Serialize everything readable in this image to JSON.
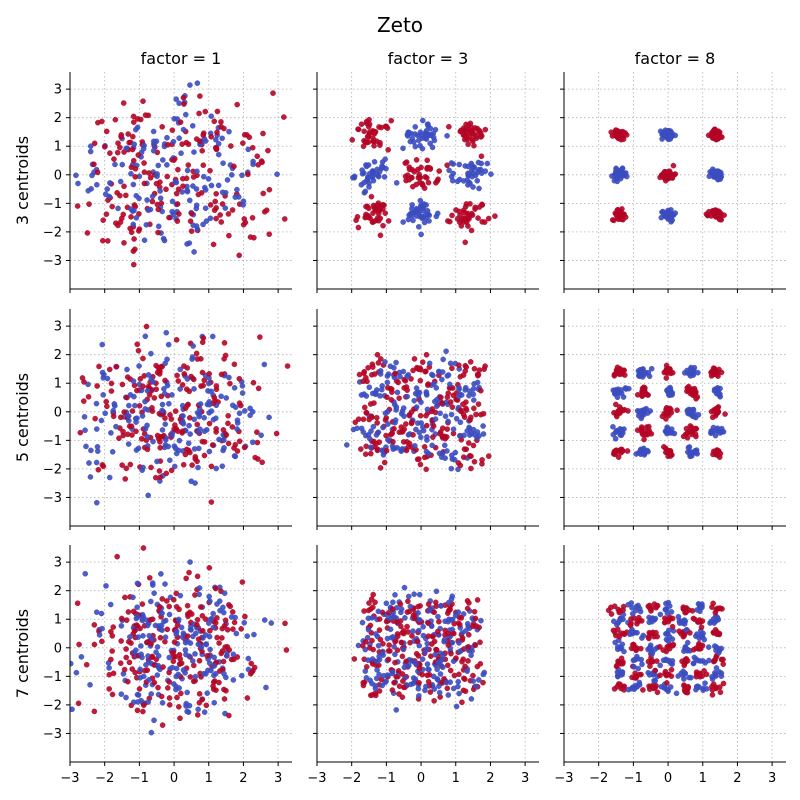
{
  "chart_data": {
    "type": "scatter",
    "title": "Zeto",
    "columns": [
      "factor = 1",
      "factor = 3",
      "factor = 8"
    ],
    "rows": [
      "3 centroids",
      "5 centroids",
      "7 centroids"
    ],
    "factors": [
      1,
      3,
      8
    ],
    "centroids": [
      3,
      5,
      7
    ],
    "xlim": [
      -3,
      3.4
    ],
    "ylim": [
      -4,
      3.6
    ],
    "xticks": [
      -3,
      -2,
      -1,
      0,
      1,
      2,
      3
    ],
    "yticks": [
      -3,
      -2,
      -1,
      0,
      1,
      2,
      3
    ],
    "grid": true,
    "colors": {
      "class_a": "#b40426",
      "class_b": "#3b4cc0"
    },
    "points_per_cluster": {
      "3": 40,
      "5": 16,
      "7": 9
    },
    "cluster_std_at_factor_1": 0.75,
    "center_span": 1.4
  }
}
